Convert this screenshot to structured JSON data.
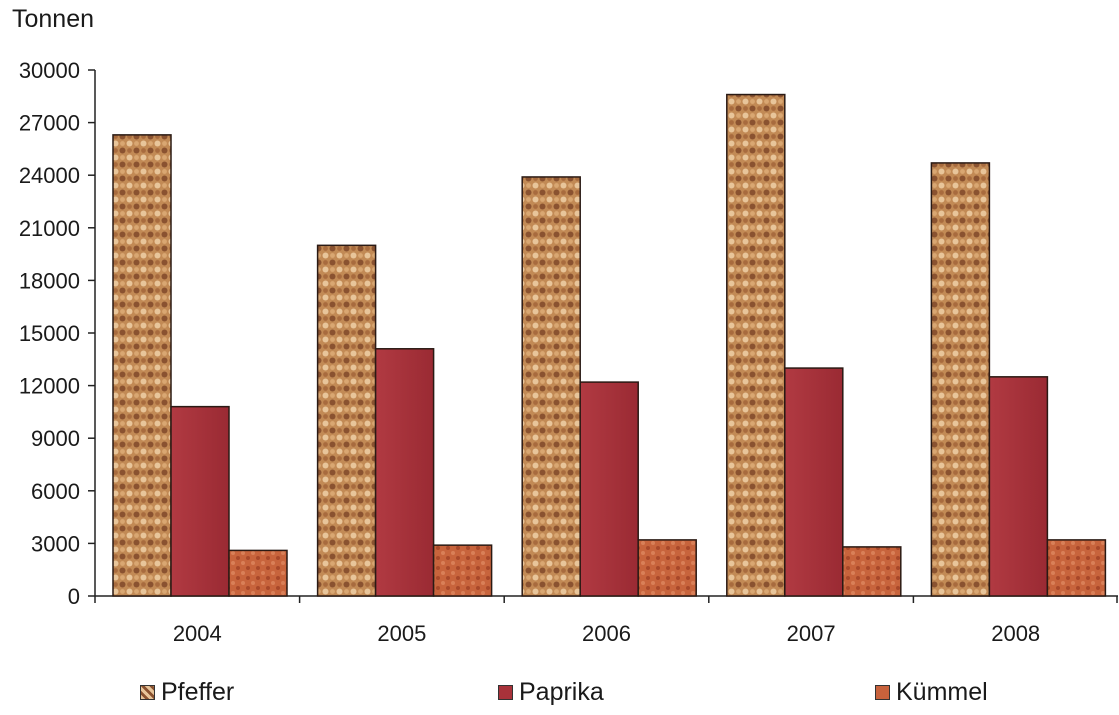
{
  "chart_data": {
    "type": "bar",
    "ylabel": "Tonnen",
    "ylim": [
      0,
      30000
    ],
    "yticks": [
      0,
      3000,
      6000,
      9000,
      12000,
      15000,
      18000,
      21000,
      24000,
      27000,
      30000
    ],
    "categories": [
      "2004",
      "2005",
      "2006",
      "2007",
      "2008"
    ],
    "series": [
      {
        "name": "Pfeffer",
        "values": [
          26300,
          20000,
          23900,
          28600,
          24700
        ],
        "color": "#c9955a"
      },
      {
        "name": "Paprika",
        "values": [
          10800,
          14100,
          12200,
          13000,
          12500
        ],
        "color": "#a8323a"
      },
      {
        "name": "Kümmel",
        "values": [
          2600,
          2900,
          3200,
          2800,
          3200
        ],
        "color": "#c8623c"
      }
    ],
    "grid": false,
    "legend_position": "bottom"
  }
}
